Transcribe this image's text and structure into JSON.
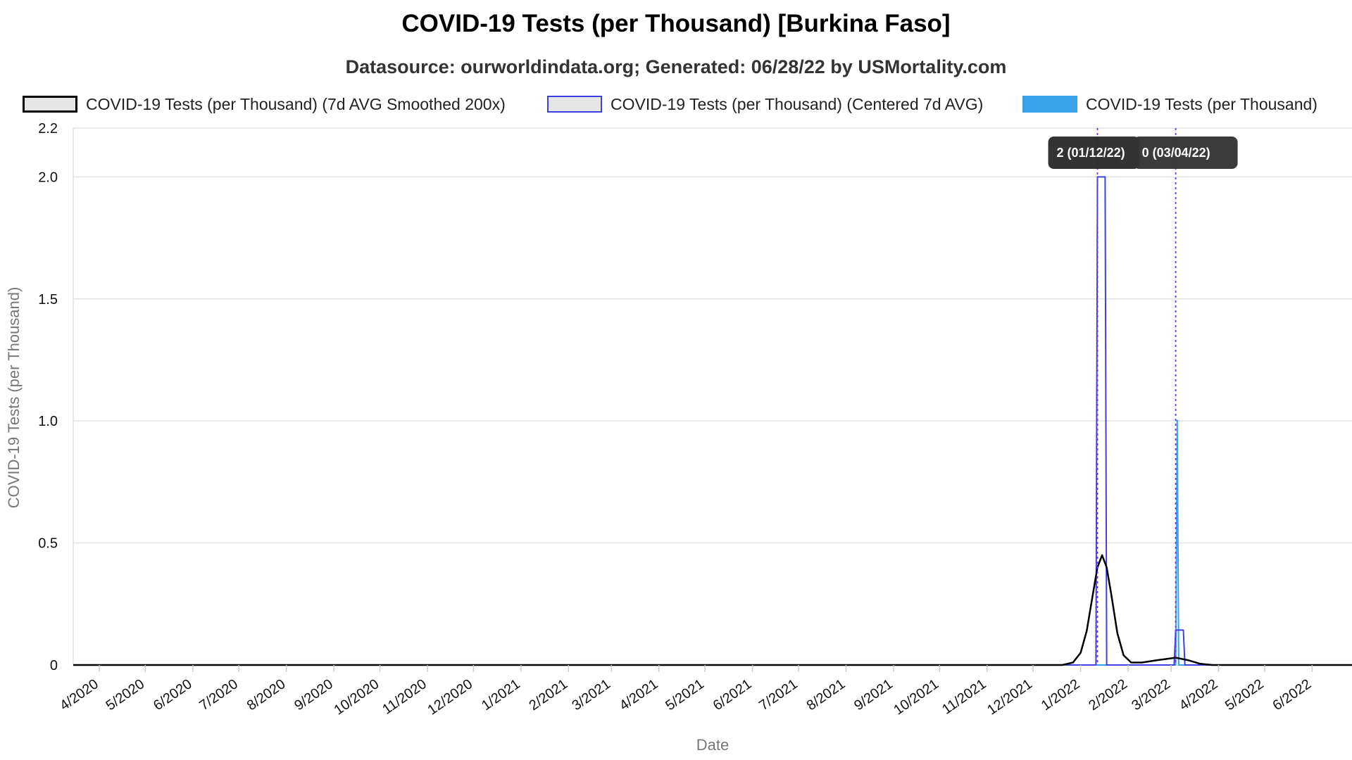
{
  "chart_data": {
    "type": "line",
    "title": "COVID-19 Tests (per Thousand) [Burkina Faso]",
    "subtitle": "Datasource: ourworldindata.org; Generated: 06/28/22 by USMortality.com",
    "xlabel": "Date",
    "ylabel": "COVID-19 Tests (per Thousand)",
    "ylim": [
      0,
      2.2
    ],
    "yticks": [
      {
        "value": 0,
        "label": "0"
      },
      {
        "value": 0.5,
        "label": "0.5"
      },
      {
        "value": 1.0,
        "label": "1.0"
      },
      {
        "value": 1.5,
        "label": "1.5"
      },
      {
        "value": 2.0,
        "label": "2.0"
      },
      {
        "value": 2.2,
        "label": "2.2"
      }
    ],
    "xlim": [
      "2020-03-15",
      "2022-06-27"
    ],
    "xticks": [
      {
        "date": "2020-04-01",
        "label": "4/2020"
      },
      {
        "date": "2020-05-01",
        "label": "5/2020"
      },
      {
        "date": "2020-06-01",
        "label": "6/2020"
      },
      {
        "date": "2020-07-01",
        "label": "7/2020"
      },
      {
        "date": "2020-08-01",
        "label": "8/2020"
      },
      {
        "date": "2020-09-01",
        "label": "9/2020"
      },
      {
        "date": "2020-10-01",
        "label": "10/2020"
      },
      {
        "date": "2020-11-01",
        "label": "11/2020"
      },
      {
        "date": "2020-12-01",
        "label": "12/2020"
      },
      {
        "date": "2021-01-01",
        "label": "1/2021"
      },
      {
        "date": "2021-02-01",
        "label": "2/2021"
      },
      {
        "date": "2021-03-01",
        "label": "3/2021"
      },
      {
        "date": "2021-04-01",
        "label": "4/2021"
      },
      {
        "date": "2021-05-01",
        "label": "5/2021"
      },
      {
        "date": "2021-06-01",
        "label": "6/2021"
      },
      {
        "date": "2021-07-01",
        "label": "7/2021"
      },
      {
        "date": "2021-08-01",
        "label": "8/2021"
      },
      {
        "date": "2021-09-01",
        "label": "9/2021"
      },
      {
        "date": "2021-10-01",
        "label": "10/2021"
      },
      {
        "date": "2021-11-01",
        "label": "11/2021"
      },
      {
        "date": "2021-12-01",
        "label": "12/2021"
      },
      {
        "date": "2022-01-01",
        "label": "1/2022"
      },
      {
        "date": "2022-02-01",
        "label": "2/2022"
      },
      {
        "date": "2022-03-01",
        "label": "3/2022"
      },
      {
        "date": "2022-04-01",
        "label": "4/2022"
      },
      {
        "date": "2022-05-01",
        "label": "5/2022"
      },
      {
        "date": "2022-06-01",
        "label": "6/2022"
      }
    ],
    "grid": true,
    "legend_position": "top",
    "series": [
      {
        "name": "COVID-19 Tests (per Thousand) (7d AVG Smoothed 200x)",
        "color": "#000000",
        "fill": "#e6e6e6",
        "points": [
          [
            "2020-03-15",
            0
          ],
          [
            "2021-12-20",
            0
          ],
          [
            "2021-12-27",
            0.01
          ],
          [
            "2022-01-01",
            0.05
          ],
          [
            "2022-01-05",
            0.14
          ],
          [
            "2022-01-09",
            0.29
          ],
          [
            "2022-01-12",
            0.4
          ],
          [
            "2022-01-15",
            0.45
          ],
          [
            "2022-01-18",
            0.4
          ],
          [
            "2022-01-21",
            0.29
          ],
          [
            "2022-01-25",
            0.13
          ],
          [
            "2022-01-29",
            0.04
          ],
          [
            "2022-02-03",
            0.01
          ],
          [
            "2022-02-10",
            0.01
          ],
          [
            "2022-02-20",
            0.02
          ],
          [
            "2022-03-04",
            0.03
          ],
          [
            "2022-03-12",
            0.02
          ],
          [
            "2022-03-20",
            0.005
          ],
          [
            "2022-03-28",
            0
          ],
          [
            "2022-06-27",
            0
          ]
        ]
      },
      {
        "name": "COVID-19 Tests (per Thousand) (Centered 7d AVG)",
        "color": "#4040e0",
        "fill": "#e6e6e6",
        "points": [
          [
            "2020-03-15",
            0
          ],
          [
            "2022-01-11",
            0
          ],
          [
            "2022-01-12",
            2.0
          ],
          [
            "2022-01-17",
            2.0
          ],
          [
            "2022-01-18",
            0
          ],
          [
            "2022-03-03",
            0
          ],
          [
            "2022-03-04",
            0.143
          ],
          [
            "2022-03-09",
            0.143
          ],
          [
            "2022-03-10",
            0
          ],
          [
            "2022-06-27",
            0
          ]
        ]
      },
      {
        "name": "COVID-19 Tests (per Thousand)",
        "color": "#36a2eb",
        "fill": "#36a2eb",
        "points": [
          [
            "2020-03-15",
            0
          ],
          [
            "2022-01-11",
            0
          ],
          [
            "2022-01-12",
            0
          ],
          [
            "2022-03-04",
            0
          ],
          [
            "2022-03-05",
            1.0
          ],
          [
            "2022-03-06",
            0
          ],
          [
            "2022-06-27",
            0
          ]
        ]
      }
    ],
    "markers": [
      {
        "date": "2022-01-12",
        "color": "#7b2ff2"
      },
      {
        "date": "2022-03-04",
        "color": "#7b2ff2"
      }
    ],
    "tooltips": [
      {
        "date": "2022-01-12",
        "value_text": "2 (01/12/22)"
      },
      {
        "date": "2022-03-04",
        "value_text": "0 (03/04/22)"
      }
    ]
  }
}
